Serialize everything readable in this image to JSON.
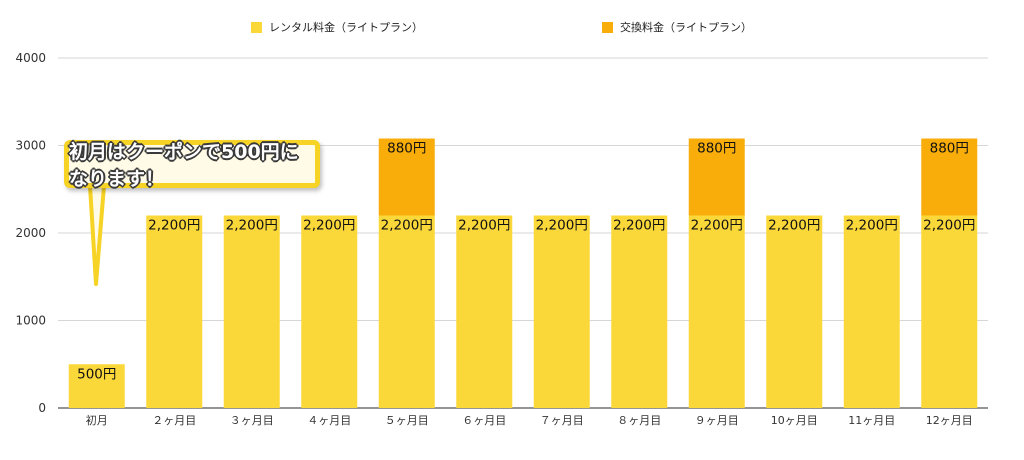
{
  "legend": {
    "rental_label": "レンタル料金（ライトプラン）",
    "exchange_label": "交換料金（ライトプラン）",
    "rental_color": "#fbd83a",
    "exchange_color": "#f9ad0a"
  },
  "callout": {
    "text": "初月はクーポンで500円になります！"
  },
  "chart_data": {
    "type": "bar",
    "stacked": true,
    "categories": [
      "初月",
      "２ヶ月目",
      "３ヶ月目",
      "４ヶ月目",
      "５ヶ月目",
      "６ヶ月目",
      "７ヶ月目",
      "８ヶ月目",
      "９ヶ月目",
      "10ヶ月目",
      "11ヶ月目",
      "12ヶ月目"
    ],
    "series": [
      {
        "name": "レンタル料金（ライトプラン）",
        "color": "#fbd83a",
        "values": [
          500,
          2200,
          2200,
          2200,
          2200,
          2200,
          2200,
          2200,
          2200,
          2200,
          2200,
          2200
        ],
        "labels": [
          "500円",
          "2,200円",
          "2,200円",
          "2,200円",
          "2,200円",
          "2,200円",
          "2,200円",
          "2,200円",
          "2,200円",
          "2,200円",
          "2,200円",
          "2,200円"
        ]
      },
      {
        "name": "交換料金（ライトプラン）",
        "color": "#f9ad0a",
        "values": [
          0,
          0,
          0,
          0,
          880,
          0,
          0,
          0,
          880,
          0,
          0,
          880
        ],
        "labels": [
          "",
          "",
          "",
          "",
          "880円",
          "",
          "",
          "",
          "880円",
          "",
          "",
          "880円"
        ]
      }
    ],
    "yticks": [
      "0",
      "1000",
      "2000",
      "3000",
      "4000"
    ],
    "ylim": [
      0,
      4000
    ],
    "grid": true,
    "legend_position": "top"
  }
}
